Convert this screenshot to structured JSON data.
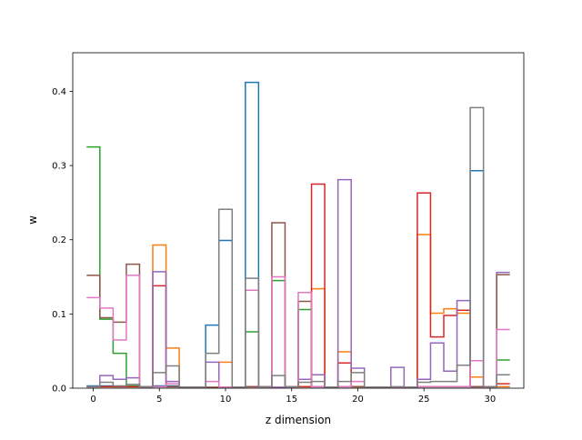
{
  "chart_data": {
    "type": "line",
    "drawstyle": "steps",
    "title": "",
    "xlabel": "z dimension",
    "ylabel": "w",
    "xlim": [
      -1.55,
      32.55
    ],
    "ylim": [
      0,
      0.452
    ],
    "xticks": [
      0,
      5,
      10,
      15,
      20,
      25,
      30
    ],
    "yticks": [
      0.0,
      0.1,
      0.2,
      0.3,
      0.4
    ],
    "ytick_labels": [
      "0.0",
      "0.1",
      "0.2",
      "0.3",
      "0.4"
    ],
    "grid": false,
    "legend": false,
    "x": [
      0,
      1,
      2,
      3,
      4,
      5,
      6,
      7,
      8,
      9,
      10,
      11,
      12,
      13,
      14,
      15,
      16,
      17,
      18,
      19,
      20,
      21,
      22,
      23,
      24,
      25,
      26,
      27,
      28,
      29,
      30,
      31
    ],
    "series": [
      {
        "color": "#1f77b4",
        "values": [
          0.003,
          0.003,
          0.002,
          0.002,
          0.002,
          0.003,
          0.003,
          0.001,
          0.001,
          0.085,
          0.199,
          0.001,
          0.412,
          0.002,
          0.001,
          0.002,
          0.002,
          0.002,
          0.001,
          0.002,
          0.002,
          0.001,
          0.001,
          0.001,
          0.001,
          0.002,
          0.002,
          0.002,
          0.002,
          0.293,
          0.002,
          0.002
        ]
      },
      {
        "color": "#ff7f0e",
        "values": [
          0.002,
          0.002,
          0.002,
          0.002,
          0.002,
          0.193,
          0.054,
          0.001,
          0.001,
          0.001,
          0.035,
          0.001,
          0.002,
          0.002,
          0.001,
          0.002,
          0.002,
          0.134,
          0.001,
          0.049,
          0.002,
          0.001,
          0.001,
          0.001,
          0.001,
          0.207,
          0.101,
          0.107,
          0.101,
          0.015,
          0.002,
          0.002
        ]
      },
      {
        "color": "#2ca02c",
        "values": [
          0.325,
          0.093,
          0.047,
          0.003,
          0.002,
          0.002,
          0.002,
          0.001,
          0.001,
          0.001,
          0.001,
          0.001,
          0.076,
          0.002,
          0.145,
          0.002,
          0.106,
          0.002,
          0.001,
          0.002,
          0.002,
          0.001,
          0.001,
          0.001,
          0.001,
          0.002,
          0.002,
          0.002,
          0.002,
          0.002,
          0.002,
          0.038
        ]
      },
      {
        "color": "#d62728",
        "values": [
          0.002,
          0.002,
          0.002,
          0.002,
          0.002,
          0.138,
          0.002,
          0.001,
          0.001,
          0.001,
          0.001,
          0.001,
          0.002,
          0.002,
          0.001,
          0.002,
          0.002,
          0.275,
          0.001,
          0.034,
          0.002,
          0.001,
          0.001,
          0.001,
          0.001,
          0.263,
          0.069,
          0.098,
          0.105,
          0.002,
          0.002,
          0.006
        ]
      },
      {
        "color": "#9467bd",
        "values": [
          0.002,
          0.017,
          0.012,
          0.014,
          0.002,
          0.157,
          0.009,
          0.001,
          0.001,
          0.035,
          0.001,
          0.001,
          0.002,
          0.002,
          0.001,
          0.002,
          0.012,
          0.018,
          0.001,
          0.281,
          0.027,
          0.001,
          0.001,
          0.028,
          0.001,
          0.012,
          0.061,
          0.023,
          0.118,
          0.002,
          0.002,
          0.156
        ]
      },
      {
        "color": "#8c564b",
        "values": [
          0.152,
          0.095,
          0.089,
          0.167,
          0.002,
          0.002,
          0.002,
          0.001,
          0.001,
          0.001,
          0.001,
          0.001,
          0.002,
          0.002,
          0.223,
          0.002,
          0.117,
          0.002,
          0.001,
          0.002,
          0.002,
          0.001,
          0.001,
          0.001,
          0.001,
          0.002,
          0.002,
          0.002,
          0.002,
          0.002,
          0.002,
          0.153
        ]
      },
      {
        "color": "#e377c2",
        "values": [
          0.122,
          0.108,
          0.065,
          0.152,
          0.002,
          0.002,
          0.006,
          0.001,
          0.001,
          0.009,
          0.001,
          0.001,
          0.132,
          0.002,
          0.15,
          0.002,
          0.129,
          0.002,
          0.001,
          0.002,
          0.009,
          0.001,
          0.001,
          0.001,
          0.001,
          0.002,
          0.002,
          0.002,
          0.002,
          0.037,
          0.002,
          0.079
        ]
      },
      {
        "color": "#7f7f7f",
        "values": [
          0.002,
          0.008,
          0.003,
          0.005,
          0.002,
          0.021,
          0.03,
          0.001,
          0.001,
          0.047,
          0.241,
          0.001,
          0.148,
          0.002,
          0.017,
          0.002,
          0.008,
          0.009,
          0.001,
          0.009,
          0.021,
          0.001,
          0.001,
          0.002,
          0.001,
          0.008,
          0.009,
          0.009,
          0.031,
          0.378,
          0.002,
          0.018
        ]
      }
    ]
  }
}
